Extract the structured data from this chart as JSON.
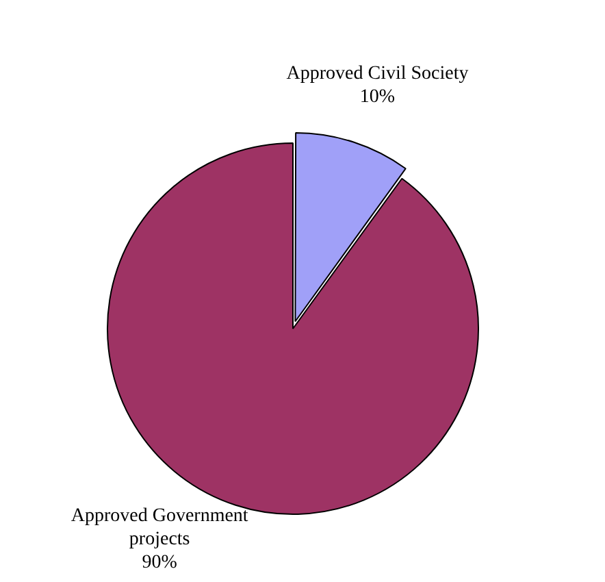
{
  "chart_data": {
    "type": "pie",
    "categories": [
      "Approved Civil Society",
      "Approved Government projects"
    ],
    "values": [
      10,
      90
    ],
    "colors": [
      "#a0a0f8",
      "#9e3364"
    ],
    "value_labels": [
      "10%",
      "90%"
    ],
    "legend": false
  }
}
